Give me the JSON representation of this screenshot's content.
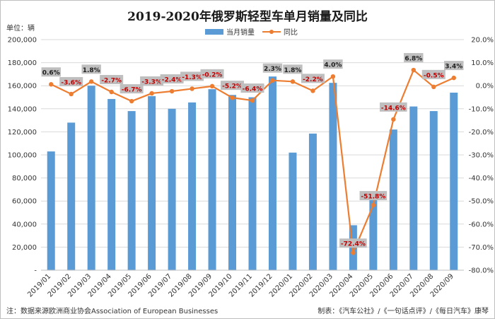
{
  "chart_data": {
    "type": "bar+line",
    "title": "2019-2020年俄罗斯轻型车单月销量及同比",
    "unit_label": "单位：辆",
    "categories": [
      "2019/01",
      "2019/02",
      "2019/03",
      "2019/04",
      "2019/05",
      "2019/06",
      "2019/07",
      "2019/08",
      "2019/09",
      "2019/10",
      "2019/11",
      "2019/12",
      "2020/01",
      "2020/02",
      "2020/03",
      "2020/04",
      "2020/05",
      "2020/06",
      "2020/07",
      "2020/08",
      "2020/09"
    ],
    "series": [
      {
        "name": "当月销量",
        "type": "bar",
        "axis": "left",
        "color": "#5b9bd5",
        "values": [
          103000,
          128000,
          160000,
          148500,
          138000,
          151000,
          140000,
          145500,
          157000,
          152000,
          150000,
          168000,
          102000,
          118500,
          162500,
          39000,
          62000,
          122000,
          142000,
          138000,
          154000
        ]
      },
      {
        "name": "同比",
        "type": "line",
        "axis": "right",
        "color": "#ed7d31",
        "values": [
          0.6,
          -3.6,
          1.8,
          -2.7,
          -6.7,
          -3.3,
          -2.4,
          -1.3,
          -0.2,
          -5.2,
          -6.4,
          2.3,
          1.8,
          -2.2,
          4.0,
          -72.4,
          -51.8,
          -14.6,
          6.8,
          -0.5,
          3.4
        ],
        "labels": [
          "0.6%",
          "-3.6%",
          "1.8%",
          "-2.7%",
          "-6.7%",
          "-3.3%",
          "-2.4%",
          "-1.3%",
          "-0.2%",
          "-5.2%",
          "-6.4%",
          "2.3%",
          "1.8%",
          "-2.2%",
          "4.0%",
          "-72.4%",
          "-51.8%",
          "-14.6%",
          "6.8%",
          "-0.5%",
          "3.4%"
        ]
      }
    ],
    "y_left": {
      "min": 0,
      "max": 200000,
      "step": 20000,
      "ticks": [
        "-",
        "20,000",
        "40,000",
        "60,000",
        "80,000",
        "100,000",
        "120,000",
        "140,000",
        "160,000",
        "180,000",
        "200,000"
      ]
    },
    "y_right": {
      "min": -80,
      "max": 20,
      "step": 10,
      "ticks": [
        "-80.0%",
        "-70.0%",
        "-60.0%",
        "-50.0%",
        "-40.0%",
        "-30.0%",
        "-20.0%",
        "-10.0%",
        "0.0%",
        "10.0%",
        "20.0%"
      ]
    },
    "legend_position": "top-center",
    "label_colors": {
      "positive": "#1f1f1f",
      "negative": "#c00000",
      "box": "#bfbfbf"
    }
  },
  "footer": {
    "source": "注：数据来源欧洲商业协会Association of European Businesses",
    "credit": "制表：《汽车公社》/《一句话点评》/《每日汽车》康琴"
  }
}
